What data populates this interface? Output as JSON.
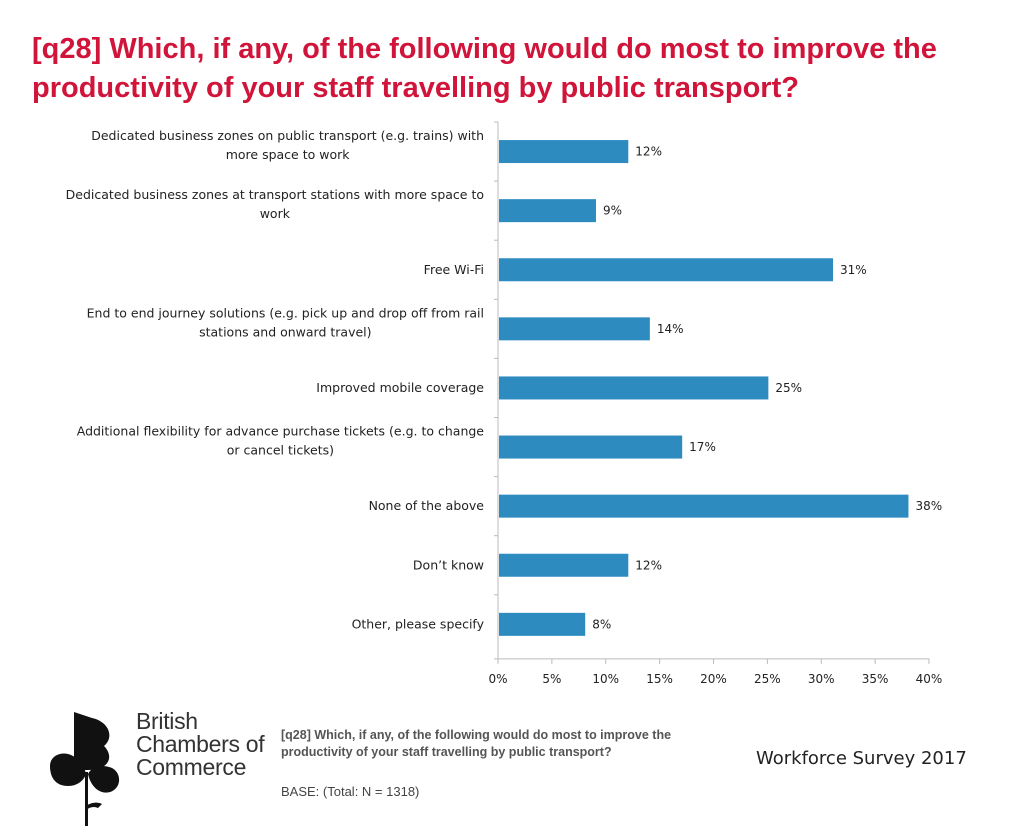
{
  "title": "[q28] Which, if any, of the following would do most to improve the productivity of your staff travelling by public transport?",
  "chart_data": {
    "type": "bar",
    "orientation": "horizontal",
    "categories": [
      [
        "Dedicated business zones on public transport (e.g. trains) with",
        "more space to work"
      ],
      [
        "Dedicated business zones at transport stations with more space to",
        "work"
      ],
      [
        "Free Wi-Fi"
      ],
      [
        "End to end journey solutions (e.g. pick up and drop off from rail",
        "stations and onward travel)"
      ],
      [
        "Improved mobile coverage"
      ],
      [
        "Additional flexibility for advance purchase tickets (e.g. to change",
        "or cancel tickets)"
      ],
      [
        "None of the above"
      ],
      [
        "Don’t know"
      ],
      [
        "Other, please specify"
      ]
    ],
    "values": [
      12,
      9,
      31,
      14,
      25,
      17,
      38,
      12,
      8
    ],
    "value_labels": [
      "12%",
      "9%",
      "31%",
      "14%",
      "25%",
      "17%",
      "38%",
      "12%",
      "8%"
    ],
    "xlim": [
      0,
      40
    ],
    "xticks": [
      0,
      5,
      10,
      15,
      20,
      25,
      30,
      35,
      40
    ],
    "xtick_labels": [
      "0%",
      "5%",
      "10%",
      "15%",
      "20%",
      "25%",
      "30%",
      "35%",
      "40%"
    ],
    "bar_color": "#2e8bc0",
    "grid": false,
    "legend": "none"
  },
  "logo": {
    "line1": "British",
    "line2": "Chambers of",
    "line3": "Commerce"
  },
  "footnote": "[q28] Which, if any, of the following would do most to improve the productivity of your staff travelling by public transport?",
  "base": "BASE: (Total: N = 1318)",
  "survey": "Workforce Survey 2017",
  "colors": {
    "title": "#d0143a",
    "bar": "#2e8bc0"
  }
}
